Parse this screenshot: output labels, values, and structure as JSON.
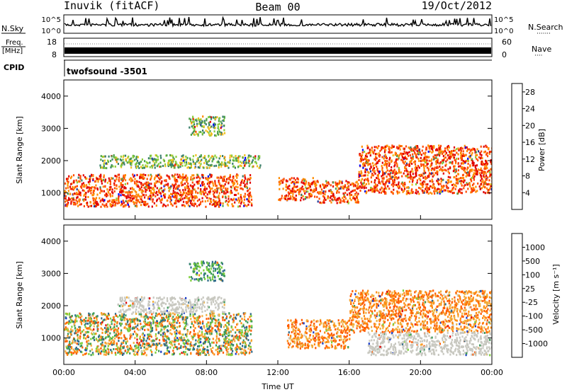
{
  "header": {
    "station": "Inuvik (fitACF)",
    "beam": "Beam 00",
    "date": "19/Oct/2012"
  },
  "noise_panel": {
    "left_label": "N.Sky",
    "right_label": "N.Search",
    "right_dots": "·······",
    "ticks_left": [
      "10^5",
      "10^0"
    ],
    "ticks_right": [
      "10^5",
      "10^0"
    ]
  },
  "freq_panel": {
    "left_label_1": "Freq.",
    "left_label_2": "[MHz]",
    "right_label": "Nave",
    "right_dots": "····",
    "ticks_left": [
      "18",
      "8"
    ],
    "ticks_right": [
      "60",
      "0"
    ]
  },
  "cpid_panel": {
    "label": "CPID",
    "value": "twofsound -3501"
  },
  "colors": {
    "power_scale": [
      "#0000ff",
      "#1e3c9c",
      "#3a7f6a",
      "#4fa34a",
      "#8ccf3c",
      "#f0c020",
      "#ff8a00",
      "#ff4a00",
      "#e00000"
    ],
    "velocity_scale": [
      "#1a3cc8",
      "#2e6a8a",
      "#3d9a5a",
      "#7ccf3a",
      "#c8c8c0",
      "#f0b040",
      "#ff8a10",
      "#ff5a00",
      "#e00000"
    ]
  },
  "chart_data": [
    {
      "type": "heatmap",
      "title": "",
      "xlabel": "Time UT",
      "ylabel": "Slant Range [km]",
      "x_ticks": [
        "00:00",
        "04:00",
        "08:00",
        "12:00",
        "16:00",
        "20:00",
        "00:00"
      ],
      "x_range_hours": [
        0,
        24
      ],
      "y_ticks": [
        1000,
        2000,
        3000,
        4000
      ],
      "ylim": [
        180,
        4500
      ],
      "colorbar": {
        "label": "Power [dB]",
        "ticks": [
          4,
          8,
          12,
          16,
          20,
          24,
          28
        ],
        "range": [
          0,
          30
        ]
      },
      "features": [
        {
          "hours": [
            0,
            10.5
          ],
          "range_km": [
            600,
            1600
          ],
          "level": "high",
          "value_db": 26
        },
        {
          "hours": [
            2,
            11
          ],
          "range_km": [
            1800,
            2200
          ],
          "level": "medium",
          "value_db": 14
        },
        {
          "hours": [
            7,
            9
          ],
          "range_km": [
            2800,
            3400
          ],
          "level": "medium",
          "value_db": 18
        },
        {
          "hours": [
            12,
            14
          ],
          "range_km": [
            800,
            1500
          ],
          "level": "high",
          "value_db": 26
        },
        {
          "hours": [
            14,
            16.5
          ],
          "range_km": [
            700,
            1400
          ],
          "level": "high",
          "value_db": 26
        },
        {
          "hours": [
            16.5,
            24
          ],
          "range_km": [
            1000,
            2500
          ],
          "level": "high",
          "value_db": 28
        }
      ]
    },
    {
      "type": "heatmap",
      "title": "",
      "xlabel": "Time UT",
      "ylabel": "Slant Range [km]",
      "x_ticks": [
        "00:00",
        "04:00",
        "08:00",
        "12:00",
        "16:00",
        "20:00",
        "00:00"
      ],
      "x_range_hours": [
        0,
        24
      ],
      "y_ticks": [
        1000,
        2000,
        3000,
        4000
      ],
      "ylim": [
        180,
        4500
      ],
      "colorbar": {
        "label": "Velocity [m s⁻¹]",
        "ticks": [
          1000,
          500,
          100,
          25,
          -25,
          -100,
          -500,
          -1000
        ]
      },
      "features": [
        {
          "hours": [
            0,
            10.5
          ],
          "range_km": [
            500,
            1800
          ],
          "level": "mixed",
          "value_ms": -300
        },
        {
          "hours": [
            3,
            9
          ],
          "range_km": [
            1800,
            2300
          ],
          "level": "ground",
          "value_ms": 0
        },
        {
          "hours": [
            7,
            9
          ],
          "range_km": [
            2800,
            3400
          ],
          "level": "toward",
          "value_ms": 300
        },
        {
          "hours": [
            12.5,
            16
          ],
          "range_km": [
            700,
            1600
          ],
          "level": "away",
          "value_ms": -400
        },
        {
          "hours": [
            16,
            24
          ],
          "range_km": [
            1200,
            2500
          ],
          "level": "away",
          "value_ms": -500
        },
        {
          "hours": [
            17,
            24
          ],
          "range_km": [
            500,
            1200
          ],
          "level": "ground",
          "value_ms": 0
        }
      ]
    }
  ]
}
